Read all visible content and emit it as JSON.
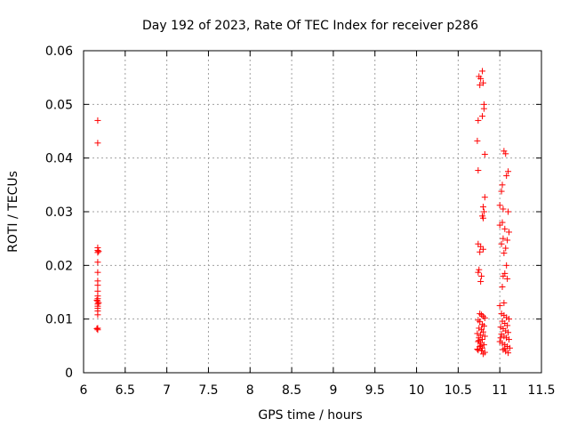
{
  "chart_data": {
    "type": "scatter",
    "title": "Day 192 of 2023, Rate Of TEC Index for receiver p286",
    "xlabel": "GPS time / hours",
    "ylabel": "ROTI / TECUs",
    "xlim": [
      6,
      11.5
    ],
    "ylim": [
      0,
      0.06
    ],
    "x_ticks": [
      6,
      6.5,
      7,
      7.5,
      8,
      8.5,
      9,
      9.5,
      10,
      10.5,
      11,
      11.5
    ],
    "x_tick_labels": [
      "6",
      "6.5",
      "7",
      "7.5",
      "8",
      "8.5",
      "9",
      "9.5",
      "10",
      "10.5",
      "11",
      "11.5"
    ],
    "y_ticks": [
      0,
      0.01,
      0.02,
      0.03,
      0.04,
      0.05,
      0.06
    ],
    "y_tick_labels": [
      "0",
      "0.01",
      "0.02",
      "0.03",
      "0.04",
      "0.05",
      "0.06"
    ],
    "grid": true,
    "marker": "+",
    "marker_color": "#ff0000",
    "series": [
      {
        "name": "p286",
        "points": [
          [
            6.17,
            0.047
          ],
          [
            6.17,
            0.0428
          ],
          [
            6.17,
            0.0233
          ],
          [
            6.17,
            0.0228
          ],
          [
            6.17,
            0.0224
          ],
          [
            6.17,
            0.0206
          ],
          [
            6.17,
            0.0187
          ],
          [
            6.17,
            0.0171
          ],
          [
            6.17,
            0.0163
          ],
          [
            6.17,
            0.0152
          ],
          [
            6.17,
            0.0143
          ],
          [
            6.17,
            0.0138
          ],
          [
            6.17,
            0.0133
          ],
          [
            6.17,
            0.0128
          ],
          [
            6.17,
            0.0124
          ],
          [
            6.17,
            0.012
          ],
          [
            6.17,
            0.0115
          ],
          [
            6.17,
            0.0108
          ],
          [
            6.17,
            0.0083
          ],
          [
            6.17,
            0.008
          ],
          [
            6.16,
            0.0082
          ],
          [
            6.18,
            0.013
          ],
          [
            6.18,
            0.0226
          ],
          [
            6.16,
            0.0135
          ],
          [
            10.75,
            0.0552
          ],
          [
            10.77,
            0.0548
          ],
          [
            10.79,
            0.0562
          ],
          [
            10.76,
            0.0536
          ],
          [
            10.8,
            0.054
          ],
          [
            10.81,
            0.05
          ],
          [
            10.81,
            0.0492
          ],
          [
            10.79,
            0.0478
          ],
          [
            10.74,
            0.047
          ],
          [
            10.73,
            0.0432
          ],
          [
            10.82,
            0.0407
          ],
          [
            10.74,
            0.0377
          ],
          [
            10.82,
            0.0327
          ],
          [
            10.8,
            0.0309
          ],
          [
            10.81,
            0.03
          ],
          [
            10.79,
            0.0292
          ],
          [
            10.8,
            0.0288
          ],
          [
            10.74,
            0.024
          ],
          [
            10.77,
            0.0235
          ],
          [
            10.8,
            0.023
          ],
          [
            10.76,
            0.0225
          ],
          [
            10.75,
            0.0192
          ],
          [
            10.74,
            0.0187
          ],
          [
            10.78,
            0.018
          ],
          [
            10.77,
            0.017
          ],
          [
            10.76,
            0.011
          ],
          [
            10.78,
            0.0108
          ],
          [
            10.8,
            0.0105
          ],
          [
            10.82,
            0.0102
          ],
          [
            10.74,
            0.0098
          ],
          [
            10.76,
            0.0095
          ],
          [
            10.79,
            0.009
          ],
          [
            10.81,
            0.0087
          ],
          [
            10.75,
            0.0083
          ],
          [
            10.78,
            0.008
          ],
          [
            10.8,
            0.0076
          ],
          [
            10.73,
            0.0073
          ],
          [
            10.77,
            0.007
          ],
          [
            10.82,
            0.0068
          ],
          [
            10.75,
            0.0065
          ],
          [
            10.79,
            0.0062
          ],
          [
            10.74,
            0.0058
          ],
          [
            10.77,
            0.0055
          ],
          [
            10.81,
            0.0052
          ],
          [
            10.76,
            0.0049
          ],
          [
            10.79,
            0.0046
          ],
          [
            10.73,
            0.0044
          ],
          [
            10.78,
            0.0041
          ],
          [
            10.82,
            0.0038
          ],
          [
            10.8,
            0.0035
          ],
          [
            10.75,
            0.006
          ],
          [
            10.77,
            0.005
          ],
          [
            10.74,
            0.0042
          ],
          [
            11.05,
            0.0413
          ],
          [
            11.07,
            0.0408
          ],
          [
            11.1,
            0.0375
          ],
          [
            11.08,
            0.0367
          ],
          [
            11.03,
            0.035
          ],
          [
            11.02,
            0.0338
          ],
          [
            11.0,
            0.0312
          ],
          [
            11.04,
            0.0305
          ],
          [
            11.1,
            0.03
          ],
          [
            11.03,
            0.028
          ],
          [
            11.0,
            0.0275
          ],
          [
            11.06,
            0.0268
          ],
          [
            11.11,
            0.0262
          ],
          [
            11.04,
            0.025
          ],
          [
            11.09,
            0.0247
          ],
          [
            11.02,
            0.024
          ],
          [
            11.07,
            0.0232
          ],
          [
            11.05,
            0.0223
          ],
          [
            11.08,
            0.02
          ],
          [
            11.06,
            0.0185
          ],
          [
            11.04,
            0.018
          ],
          [
            11.09,
            0.0175
          ],
          [
            11.03,
            0.016
          ],
          [
            11.05,
            0.013
          ],
          [
            11.0,
            0.0125
          ],
          [
            11.02,
            0.011
          ],
          [
            11.05,
            0.0107
          ],
          [
            11.08,
            0.0103
          ],
          [
            11.11,
            0.01
          ],
          [
            11.03,
            0.0096
          ],
          [
            11.06,
            0.0092
          ],
          [
            11.09,
            0.0088
          ],
          [
            11.01,
            0.0085
          ],
          [
            11.04,
            0.0082
          ],
          [
            11.07,
            0.0078
          ],
          [
            11.1,
            0.0075
          ],
          [
            11.02,
            0.0072
          ],
          [
            11.05,
            0.0068
          ],
          [
            11.08,
            0.0065
          ],
          [
            11.11,
            0.0062
          ],
          [
            11.0,
            0.0058
          ],
          [
            11.03,
            0.0055
          ],
          [
            11.06,
            0.0052
          ],
          [
            11.09,
            0.0049
          ],
          [
            11.12,
            0.0046
          ],
          [
            11.04,
            0.0043
          ],
          [
            11.07,
            0.004
          ],
          [
            11.1,
            0.0037
          ],
          [
            11.01,
            0.0065
          ],
          [
            11.06,
            0.0045
          ]
        ]
      }
    ]
  }
}
